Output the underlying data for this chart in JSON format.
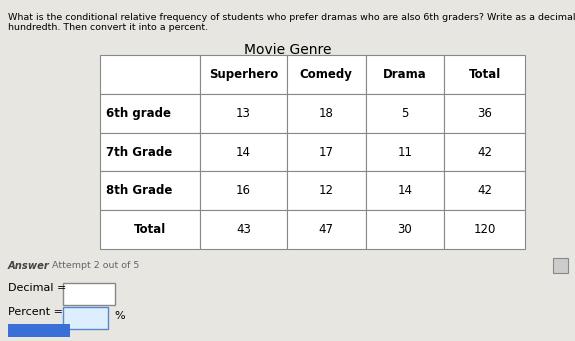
{
  "question_line1": "What is the conditional relative frequency of students who prefer dramas who are also 6th graders? Write as a decimal to the nearest",
  "question_line2": "hundredth. Then convert it into a percent.",
  "table_title": "Movie Genre",
  "col_headers": [
    "",
    "Superhero",
    "Comedy",
    "Drama",
    "Total"
  ],
  "rows": [
    {
      "label": "6th grade",
      "values": [
        "13",
        "18",
        "5",
        "36"
      ]
    },
    {
      "label": "7th Grade",
      "values": [
        "14",
        "17",
        "11",
        "42"
      ]
    },
    {
      "label": "8th Grade",
      "values": [
        "16",
        "12",
        "14",
        "42"
      ]
    },
    {
      "label": "Total",
      "values": [
        "43",
        "47",
        "30",
        "120"
      ]
    }
  ],
  "answer_label": "Answer",
  "attempt_label": "Attempt 2 out of 5",
  "decimal_label": "Decimal =",
  "percent_label": "Percent =",
  "percent_suffix": "%",
  "bg_color": "#e8e6e1",
  "cell_bg": "#ffffff",
  "border_color": "#888888",
  "text_color": "#000000",
  "answer_color": "#444444",
  "attempt_color": "#666666",
  "blue_btn_color": "#3a6fd8",
  "icon_color": "#aaaaaa"
}
